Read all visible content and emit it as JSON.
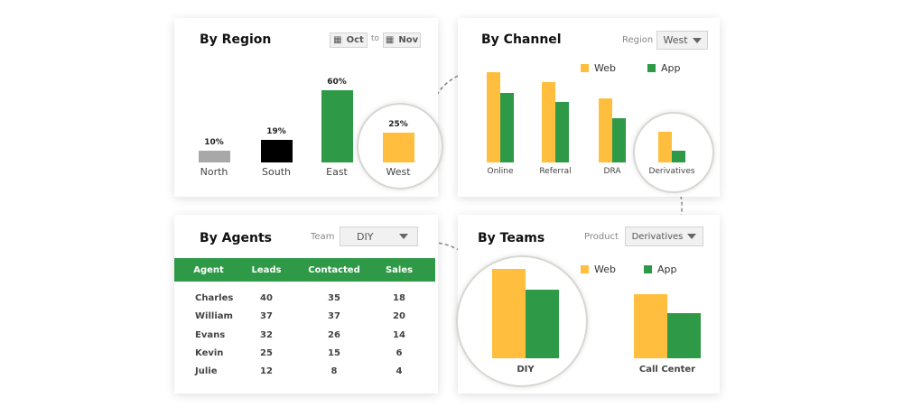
{
  "colors": {
    "web": "#FFBE3D",
    "app": "#2E9A48",
    "north": "#A8A8A8",
    "south": "#000000",
    "east": "#2E9A48",
    "west": "#FFBE3D",
    "table_header": "#2E9A48"
  },
  "region": {
    "title": "By Region",
    "from": "Oct",
    "to_label": "to",
    "to": "Nov",
    "icon": "calendar-icon",
    "bars": [
      {
        "label": "North",
        "value": 10,
        "text": "10%"
      },
      {
        "label": "South",
        "value": 19,
        "text": "19%"
      },
      {
        "label": "East",
        "value": 60,
        "text": "60%"
      },
      {
        "label": "West",
        "value": 25,
        "text": "25%"
      }
    ]
  },
  "channel": {
    "title": "By Channel",
    "filter_label": "Region",
    "filter_value": "West",
    "legend": [
      "Web",
      "App"
    ],
    "chart_data": {
      "type": "bar",
      "categories": [
        "Online",
        "Referral",
        "DRA",
        "Derivatives"
      ],
      "series": [
        {
          "name": "Web",
          "values": [
            100,
            89,
            71,
            34
          ]
        },
        {
          "name": "App",
          "values": [
            77,
            67,
            49,
            13
          ]
        }
      ]
    }
  },
  "agents": {
    "title": "By Agents",
    "filter_label": "Team",
    "filter_value": "DIY",
    "columns": [
      "Agent",
      "Leads",
      "Contacted",
      "Sales"
    ],
    "rows": [
      [
        "Charles",
        "40",
        "35",
        "18"
      ],
      [
        "William",
        "37",
        "37",
        "20"
      ],
      [
        "Evans",
        "32",
        "26",
        "14"
      ],
      [
        "Kevin",
        "25",
        "15",
        "6"
      ],
      [
        "Julie",
        "12",
        "8",
        "4"
      ]
    ]
  },
  "teams": {
    "title": "By Teams",
    "filter_label": "Product",
    "filter_value": "Derivatives",
    "legend": [
      "Web",
      "App"
    ],
    "chart_data": {
      "type": "bar",
      "categories": [
        "DIY",
        "Call Center"
      ],
      "series": [
        {
          "name": "Web",
          "values": [
            99,
            71
          ]
        },
        {
          "name": "App",
          "values": [
            76,
            50
          ]
        }
      ]
    }
  }
}
